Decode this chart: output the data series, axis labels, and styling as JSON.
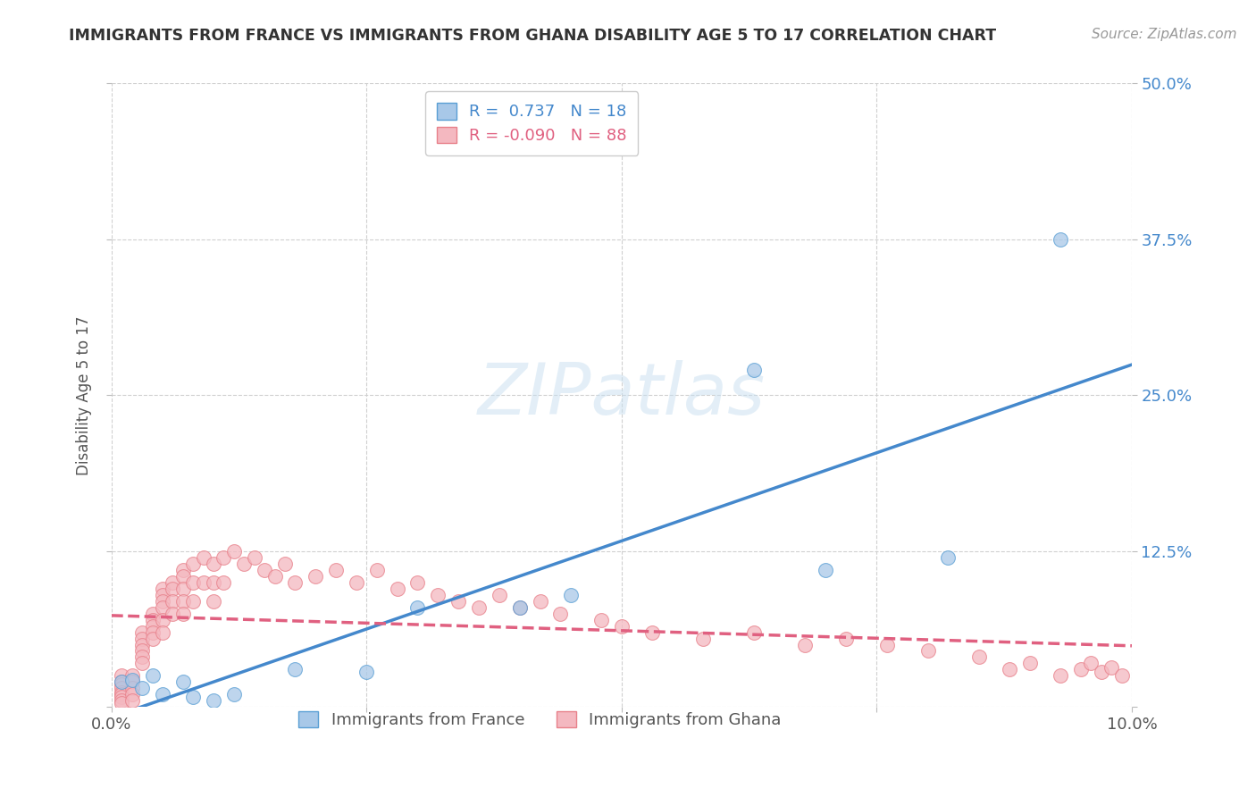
{
  "title": "IMMIGRANTS FROM FRANCE VS IMMIGRANTS FROM GHANA DISABILITY AGE 5 TO 17 CORRELATION CHART",
  "source": "Source: ZipAtlas.com",
  "ylabel": "Disability Age 5 to 17",
  "xlim": [
    0.0,
    0.1
  ],
  "ylim": [
    0.0,
    0.5
  ],
  "xtick_vals": [
    0.0,
    0.025,
    0.05,
    0.075,
    0.1
  ],
  "xtick_labels": [
    "0.0%",
    "",
    "",
    "",
    "10.0%"
  ],
  "ytick_vals": [
    0.0,
    0.125,
    0.25,
    0.375,
    0.5
  ],
  "ytick_labels_right": [
    "",
    "12.5%",
    "25.0%",
    "37.5%",
    "50.0%"
  ],
  "france_color": "#a8c8e8",
  "ghana_color": "#f4b8c0",
  "france_edge_color": "#5a9fd4",
  "ghana_edge_color": "#e8808a",
  "france_line_color": "#4488cc",
  "ghana_line_color": "#e06080",
  "france_R": 0.737,
  "france_N": 18,
  "ghana_R": -0.09,
  "ghana_N": 88,
  "watermark": "ZIPatlas",
  "background_color": "#ffffff",
  "grid_color": "#d0d0d0",
  "france_x": [
    0.001,
    0.002,
    0.003,
    0.004,
    0.005,
    0.007,
    0.008,
    0.01,
    0.012,
    0.018,
    0.025,
    0.03,
    0.04,
    0.045,
    0.063,
    0.07,
    0.082,
    0.093
  ],
  "france_y": [
    0.02,
    0.022,
    0.015,
    0.025,
    0.01,
    0.02,
    0.008,
    0.005,
    0.01,
    0.03,
    0.028,
    0.08,
    0.08,
    0.09,
    0.27,
    0.11,
    0.12,
    0.375
  ],
  "ghana_x": [
    0.001,
    0.001,
    0.001,
    0.001,
    0.001,
    0.001,
    0.001,
    0.001,
    0.001,
    0.002,
    0.002,
    0.002,
    0.002,
    0.002,
    0.003,
    0.003,
    0.003,
    0.003,
    0.003,
    0.003,
    0.004,
    0.004,
    0.004,
    0.004,
    0.004,
    0.005,
    0.005,
    0.005,
    0.005,
    0.005,
    0.005,
    0.006,
    0.006,
    0.006,
    0.006,
    0.007,
    0.007,
    0.007,
    0.007,
    0.007,
    0.008,
    0.008,
    0.008,
    0.009,
    0.009,
    0.01,
    0.01,
    0.01,
    0.011,
    0.011,
    0.012,
    0.013,
    0.014,
    0.015,
    0.016,
    0.017,
    0.018,
    0.02,
    0.022,
    0.024,
    0.026,
    0.028,
    0.03,
    0.032,
    0.034,
    0.036,
    0.038,
    0.04,
    0.042,
    0.044,
    0.048,
    0.05,
    0.053,
    0.058,
    0.063,
    0.068,
    0.072,
    0.076,
    0.08,
    0.085,
    0.088,
    0.09,
    0.093,
    0.095,
    0.096,
    0.097,
    0.098,
    0.099
  ],
  "ghana_y": [
    0.025,
    0.02,
    0.018,
    0.015,
    0.012,
    0.01,
    0.008,
    0.005,
    0.003,
    0.025,
    0.02,
    0.015,
    0.01,
    0.005,
    0.06,
    0.055,
    0.05,
    0.045,
    0.04,
    0.035,
    0.075,
    0.07,
    0.065,
    0.06,
    0.055,
    0.095,
    0.09,
    0.085,
    0.08,
    0.07,
    0.06,
    0.1,
    0.095,
    0.085,
    0.075,
    0.11,
    0.105,
    0.095,
    0.085,
    0.075,
    0.115,
    0.1,
    0.085,
    0.12,
    0.1,
    0.115,
    0.1,
    0.085,
    0.12,
    0.1,
    0.125,
    0.115,
    0.12,
    0.11,
    0.105,
    0.115,
    0.1,
    0.105,
    0.11,
    0.1,
    0.11,
    0.095,
    0.1,
    0.09,
    0.085,
    0.08,
    0.09,
    0.08,
    0.085,
    0.075,
    0.07,
    0.065,
    0.06,
    0.055,
    0.06,
    0.05,
    0.055,
    0.05,
    0.045,
    0.04,
    0.03,
    0.035,
    0.025,
    0.03,
    0.035,
    0.028,
    0.032,
    0.025
  ]
}
